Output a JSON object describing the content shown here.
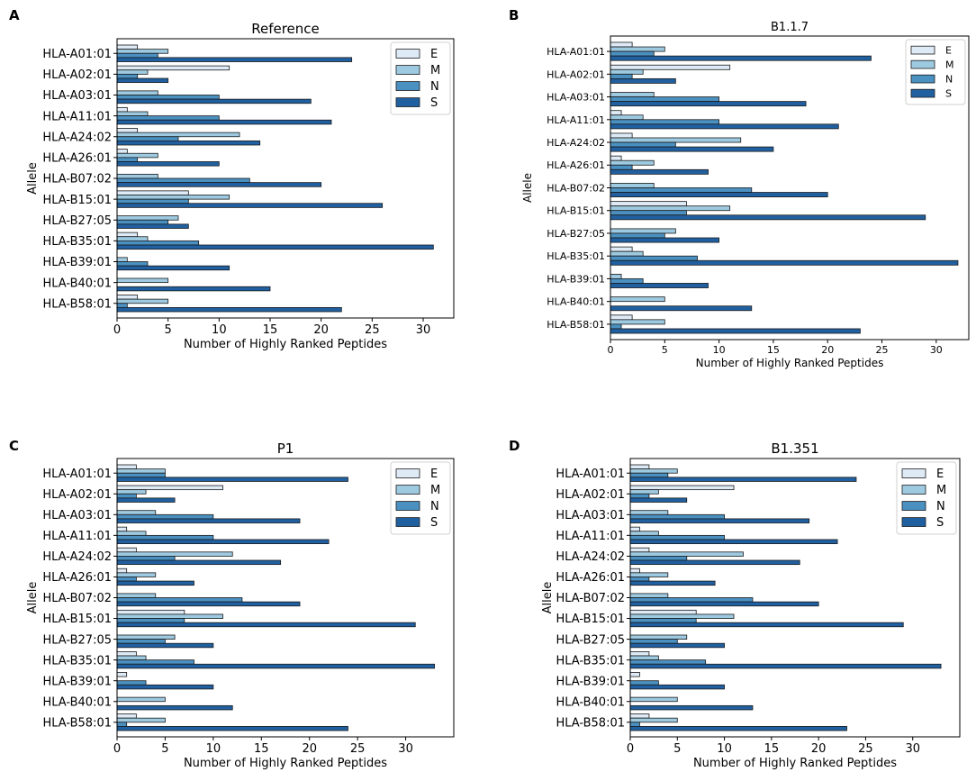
{
  "colors": {
    "E": "#deebf7",
    "M": "#9ecae1",
    "N": "#4a90c0",
    "S": "#2060a0"
  },
  "chart_data": [
    {
      "type": "bar",
      "orientation": "horizontal",
      "panel": "A",
      "title": "Reference",
      "xlabel": "Number of Highly Ranked Peptides",
      "ylabel": "Allele",
      "xlim": [
        0,
        33
      ],
      "xticks": [
        0,
        5,
        10,
        15,
        20,
        25,
        30
      ],
      "legend_position": "top-right",
      "categories": [
        "HLA-A01:01",
        "HLA-A02:01",
        "HLA-A03:01",
        "HLA-A11:01",
        "HLA-A24:02",
        "HLA-A26:01",
        "HLA-B07:02",
        "HLA-B15:01",
        "HLA-B27:05",
        "HLA-B35:01",
        "HLA-B39:01",
        "HLA-B40:01",
        "HLA-B58:01"
      ],
      "series": [
        {
          "name": "E",
          "values": [
            2,
            11,
            0,
            1,
            2,
            1,
            0,
            7,
            0,
            2,
            0,
            0,
            2
          ]
        },
        {
          "name": "M",
          "values": [
            5,
            3,
            4,
            3,
            12,
            4,
            4,
            11,
            6,
            3,
            1,
            5,
            5
          ]
        },
        {
          "name": "N",
          "values": [
            4,
            2,
            10,
            10,
            6,
            2,
            13,
            7,
            5,
            8,
            3,
            0,
            1
          ]
        },
        {
          "name": "S",
          "values": [
            23,
            5,
            19,
            21,
            14,
            10,
            20,
            26,
            7,
            31,
            11,
            15,
            22
          ]
        }
      ]
    },
    {
      "type": "bar",
      "orientation": "horizontal",
      "panel": "B",
      "title": "B1.1.7",
      "xlabel": "Number of Highly Ranked Peptides",
      "ylabel": "Allele",
      "xlim": [
        0,
        33
      ],
      "xticks": [
        0,
        5,
        10,
        15,
        20,
        25,
        30
      ],
      "legend_position": "top-right",
      "categories": [
        "HLA-A01:01",
        "HLA-A02:01",
        "HLA-A03:01",
        "HLA-A11:01",
        "HLA-A24:02",
        "HLA-A26:01",
        "HLA-B07:02",
        "HLA-B15:01",
        "HLA-B27:05",
        "HLA-B35:01",
        "HLA-B39:01",
        "HLA-B40:01",
        "HLA-B58:01"
      ],
      "series": [
        {
          "name": "E",
          "values": [
            2,
            11,
            0,
            1,
            2,
            1,
            0,
            7,
            0,
            2,
            0,
            0,
            2
          ]
        },
        {
          "name": "M",
          "values": [
            5,
            3,
            4,
            3,
            12,
            4,
            4,
            11,
            6,
            3,
            1,
            5,
            5
          ]
        },
        {
          "name": "N",
          "values": [
            4,
            2,
            10,
            10,
            6,
            2,
            13,
            7,
            5,
            8,
            3,
            0,
            1
          ]
        },
        {
          "name": "S",
          "values": [
            24,
            6,
            18,
            21,
            15,
            9,
            20,
            29,
            10,
            32,
            9,
            13,
            23
          ]
        }
      ]
    },
    {
      "type": "bar",
      "orientation": "horizontal",
      "panel": "C",
      "title": "P1",
      "xlabel": "Number of Highly Ranked Peptides",
      "ylabel": "Allele",
      "xlim": [
        0,
        35
      ],
      "xticks": [
        0,
        5,
        10,
        15,
        20,
        25,
        30
      ],
      "legend_position": "top-right",
      "categories": [
        "HLA-A01:01",
        "HLA-A02:01",
        "HLA-A03:01",
        "HLA-A11:01",
        "HLA-A24:02",
        "HLA-A26:01",
        "HLA-B07:02",
        "HLA-B15:01",
        "HLA-B27:05",
        "HLA-B35:01",
        "HLA-B39:01",
        "HLA-B40:01",
        "HLA-B58:01"
      ],
      "series": [
        {
          "name": "E",
          "values": [
            2,
            11,
            0,
            1,
            2,
            1,
            0,
            7,
            0,
            2,
            1,
            0,
            2
          ]
        },
        {
          "name": "M",
          "values": [
            5,
            3,
            4,
            3,
            12,
            4,
            4,
            11,
            6,
            3,
            0,
            5,
            5
          ]
        },
        {
          "name": "N",
          "values": [
            5,
            2,
            10,
            10,
            6,
            2,
            13,
            7,
            5,
            8,
            3,
            0,
            1
          ]
        },
        {
          "name": "S",
          "values": [
            24,
            6,
            19,
            22,
            17,
            8,
            19,
            31,
            10,
            33,
            10,
            12,
            24
          ]
        }
      ]
    },
    {
      "type": "bar",
      "orientation": "horizontal",
      "panel": "D",
      "title": "B1.351",
      "xlabel": "Number of Highly Ranked Peptides",
      "ylabel": "Allele",
      "xlim": [
        0,
        35
      ],
      "xticks": [
        0,
        5,
        10,
        15,
        20,
        25,
        30
      ],
      "legend_position": "top-right",
      "categories": [
        "HLA-A01:01",
        "HLA-A02:01",
        "HLA-A03:01",
        "HLA-A11:01",
        "HLA-A24:02",
        "HLA-A26:01",
        "HLA-B07:02",
        "HLA-B15:01",
        "HLA-B27:05",
        "HLA-B35:01",
        "HLA-B39:01",
        "HLA-B40:01",
        "HLA-B58:01"
      ],
      "series": [
        {
          "name": "E",
          "values": [
            2,
            11,
            0,
            1,
            2,
            1,
            0,
            7,
            0,
            2,
            1,
            0,
            2
          ]
        },
        {
          "name": "M",
          "values": [
            5,
            3,
            4,
            3,
            12,
            4,
            4,
            11,
            6,
            3,
            0,
            5,
            5
          ]
        },
        {
          "name": "N",
          "values": [
            4,
            2,
            10,
            10,
            6,
            2,
            13,
            7,
            5,
            8,
            3,
            0,
            1
          ]
        },
        {
          "name": "S",
          "values": [
            24,
            6,
            19,
            22,
            18,
            9,
            20,
            29,
            10,
            33,
            10,
            13,
            23
          ]
        }
      ]
    }
  ]
}
